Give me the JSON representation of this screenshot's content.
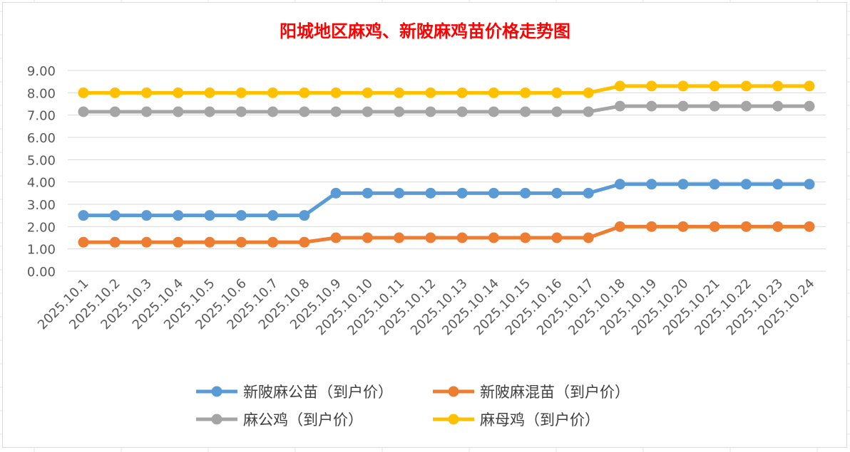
{
  "chart_data": {
    "type": "line",
    "title": "阳城地区麻鸡、新陂麻鸡苗价格走势图",
    "xlabel": "",
    "ylabel": "",
    "ylim": [
      0,
      9
    ],
    "yticks": [
      "0.00",
      "1.00",
      "2.00",
      "3.00",
      "4.00",
      "5.00",
      "6.00",
      "7.00",
      "8.00",
      "9.00"
    ],
    "grid": true,
    "legend_position": "bottom",
    "categories": [
      "2025.10.1",
      "2025.10.2",
      "2025.10.3",
      "2025.10.4",
      "2025.10.5",
      "2025.10.6",
      "2025.10.7",
      "2025.10.8",
      "2025.10.9",
      "2025.10.10",
      "2025.10.11",
      "2025.10.12",
      "2025.10.13",
      "2025.10.14",
      "2025.10.15",
      "2025.10.16",
      "2025.10.17",
      "2025.10.18",
      "2025.10.19",
      "2025.10.20",
      "2025.10.21",
      "2025.10.22",
      "2025.10.23",
      "2025.10.24"
    ],
    "series": [
      {
        "name": "新陂麻公苗（到户价）",
        "color": "#5b9bd5",
        "values": [
          2.5,
          2.5,
          2.5,
          2.5,
          2.5,
          2.5,
          2.5,
          2.5,
          3.5,
          3.5,
          3.5,
          3.5,
          3.5,
          3.5,
          3.5,
          3.5,
          3.5,
          3.9,
          3.9,
          3.9,
          3.9,
          3.9,
          3.9,
          3.9
        ]
      },
      {
        "name": "新陂麻混苗（到户价）",
        "color": "#ed7d31",
        "values": [
          1.3,
          1.3,
          1.3,
          1.3,
          1.3,
          1.3,
          1.3,
          1.3,
          1.5,
          1.5,
          1.5,
          1.5,
          1.5,
          1.5,
          1.5,
          1.5,
          1.5,
          2.0,
          2.0,
          2.0,
          2.0,
          2.0,
          2.0,
          2.0
        ]
      },
      {
        "name": "麻公鸡（到户价）",
        "color": "#a5a5a5",
        "values": [
          7.15,
          7.15,
          7.15,
          7.15,
          7.15,
          7.15,
          7.15,
          7.15,
          7.15,
          7.15,
          7.15,
          7.15,
          7.15,
          7.15,
          7.15,
          7.15,
          7.15,
          7.4,
          7.4,
          7.4,
          7.4,
          7.4,
          7.4,
          7.4
        ]
      },
      {
        "name": "麻母鸡（到户价）",
        "color": "#ffc000",
        "values": [
          8.0,
          8.0,
          8.0,
          8.0,
          8.0,
          8.0,
          8.0,
          8.0,
          8.0,
          8.0,
          8.0,
          8.0,
          8.0,
          8.0,
          8.0,
          8.0,
          8.0,
          8.3,
          8.3,
          8.3,
          8.3,
          8.3,
          8.3,
          8.3
        ]
      }
    ]
  }
}
